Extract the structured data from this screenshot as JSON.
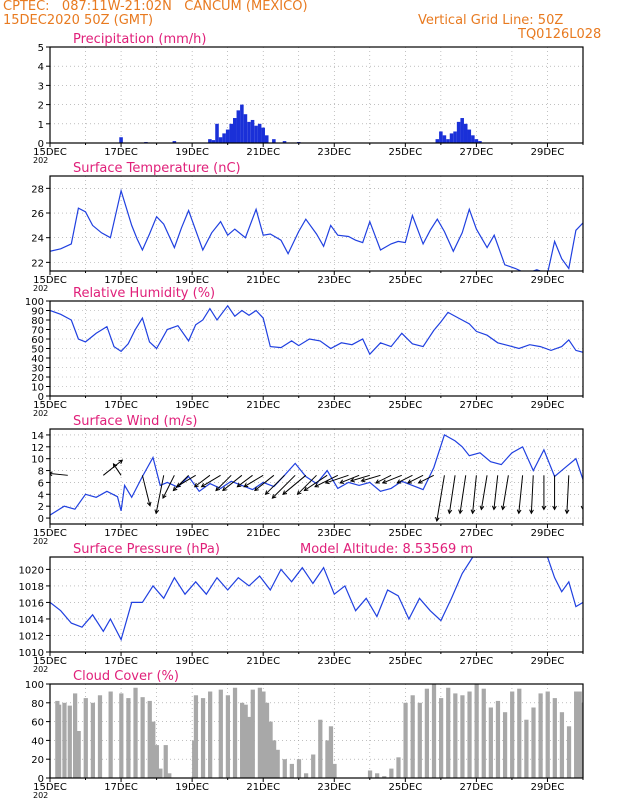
{
  "header": {
    "line1_left": "CPTEC:   087:11W-21:02N   CANCUM (MEXICO)",
    "line2_left": "15DEC2020 50Z (GMT)",
    "line1_right": "Vertical Grid Line: 50Z",
    "line2_right": "TQ0126L028"
  },
  "colors": {
    "header": "#e87a20",
    "title": "#e0207a",
    "line": "#2040e0",
    "bar": "#1a30d8",
    "cloud": "#a8a8a8"
  },
  "x_ticks": [
    "15DEC",
    "17DEC",
    "19DEC",
    "21DEC",
    "23DEC",
    "25DEC",
    "27DEC",
    "29DEC"
  ],
  "x_tick_suffix": "202",
  "chart_data": [
    {
      "id": "precip",
      "type": "bar",
      "title": "Precipitation  (mm/h)",
      "ylim": [
        0,
        5
      ],
      "yticks": [
        0,
        1,
        2,
        3,
        4,
        5
      ],
      "x": [
        2.0,
        2.7,
        3.5,
        4.5,
        4.6,
        4.7,
        4.8,
        4.9,
        5.0,
        5.1,
        5.2,
        5.3,
        5.4,
        5.5,
        5.6,
        5.7,
        5.8,
        5.9,
        6.0,
        6.1,
        6.3,
        6.6,
        7.0,
        10.9,
        11.0,
        11.1,
        11.2,
        11.3,
        11.4,
        11.5,
        11.6,
        11.7,
        11.8,
        11.9,
        12.0,
        12.1
      ],
      "values": [
        0.3,
        0.05,
        0.1,
        0.2,
        0.15,
        1.0,
        0.3,
        0.5,
        0.7,
        1.0,
        1.3,
        1.7,
        2.0,
        1.5,
        1.1,
        1.2,
        0.9,
        1.0,
        0.8,
        0.4,
        0.2,
        0.1,
        0.05,
        0.2,
        0.6,
        0.4,
        0.2,
        0.5,
        0.6,
        1.1,
        1.3,
        1.0,
        0.7,
        0.4,
        0.2,
        0.1
      ]
    },
    {
      "id": "temp",
      "type": "line",
      "title": "Surface Temperature  (nC)",
      "ylim": [
        21.3,
        29
      ],
      "yticks": [
        22,
        24,
        26,
        28
      ],
      "x": [
        0,
        0.3,
        0.6,
        0.8,
        1.0,
        1.2,
        1.45,
        1.7,
        2.0,
        2.3,
        2.45,
        2.6,
        2.8,
        3.0,
        3.2,
        3.5,
        3.7,
        3.9,
        4.1,
        4.3,
        4.55,
        4.8,
        5.0,
        5.2,
        5.5,
        5.8,
        6.0,
        6.2,
        6.5,
        6.7,
        7.0,
        7.2,
        7.5,
        7.7,
        7.9,
        8.1,
        8.4,
        8.6,
        8.8,
        9.0,
        9.3,
        9.6,
        9.8,
        10.0,
        10.2,
        10.5,
        10.7,
        10.9,
        11.1,
        11.35,
        11.6,
        11.8,
        12.0,
        12.3,
        12.5,
        12.8,
        13.1,
        13.4,
        13.7,
        14.0,
        14.2,
        14.4,
        14.6,
        14.8,
        15.0
      ],
      "values": [
        22.9,
        23.1,
        23.5,
        26.4,
        26.1,
        25.0,
        24.4,
        24.0,
        27.8,
        25.0,
        23.9,
        23.0,
        24.3,
        25.7,
        25.1,
        23.2,
        24.8,
        26.2,
        24.6,
        23.0,
        24.4,
        25.3,
        24.2,
        24.7,
        24.0,
        26.3,
        24.2,
        24.3,
        23.8,
        22.7,
        24.5,
        25.5,
        24.3,
        23.3,
        25.0,
        24.2,
        24.1,
        23.8,
        23.6,
        25.3,
        23.0,
        23.5,
        23.7,
        23.6,
        25.8,
        23.5,
        24.6,
        25.5,
        24.5,
        22.9,
        24.4,
        26.3,
        24.7,
        23.2,
        24.2,
        21.8,
        21.5,
        21.1,
        21.4,
        21.1,
        23.7,
        22.3,
        21.5,
        24.6,
        25.2
      ]
    },
    {
      "id": "rh",
      "type": "line",
      "title": "Relative Humidity  (%)",
      "ylim": [
        0,
        100
      ],
      "yticks": [
        0,
        10,
        20,
        30,
        40,
        50,
        60,
        70,
        80,
        90,
        100
      ],
      "x": [
        0,
        0.3,
        0.6,
        0.8,
        1.0,
        1.3,
        1.6,
        1.8,
        2.0,
        2.2,
        2.4,
        2.6,
        2.8,
        3.0,
        3.3,
        3.6,
        3.9,
        4.1,
        4.3,
        4.5,
        4.7,
        5.0,
        5.2,
        5.4,
        5.6,
        5.8,
        6.0,
        6.2,
        6.5,
        6.8,
        7.0,
        7.3,
        7.6,
        7.9,
        8.2,
        8.5,
        8.8,
        9.0,
        9.3,
        9.6,
        9.9,
        10.2,
        10.5,
        10.8,
        11.0,
        11.2,
        11.5,
        11.8,
        12.0,
        12.3,
        12.6,
        12.9,
        13.2,
        13.5,
        13.8,
        14.1,
        14.4,
        14.6,
        14.8,
        15.0
      ],
      "values": [
        90,
        86,
        80,
        60,
        57,
        66,
        73,
        52,
        47,
        55,
        70,
        82,
        57,
        50,
        70,
        74,
        58,
        75,
        80,
        92,
        80,
        95,
        84,
        90,
        85,
        90,
        82,
        52,
        51,
        58,
        53,
        60,
        58,
        50,
        56,
        54,
        60,
        44,
        56,
        52,
        66,
        55,
        52,
        69,
        78,
        88,
        82,
        76,
        68,
        64,
        56,
        53,
        50,
        54,
        52,
        48,
        52,
        59,
        48,
        46
      ]
    },
    {
      "id": "wind",
      "type": "line",
      "title": "Surface Wind  (m/s)",
      "ylim": [
        -1,
        15
      ],
      "yticks": [
        0,
        2,
        4,
        6,
        8,
        10,
        12,
        14
      ],
      "x": [
        0,
        0.4,
        0.7,
        1.0,
        1.3,
        1.6,
        1.9,
        2.0,
        2.1,
        2.3,
        2.6,
        2.9,
        3.1,
        3.3,
        3.6,
        3.9,
        4.2,
        4.5,
        4.8,
        5.1,
        5.4,
        5.7,
        6.0,
        6.3,
        6.6,
        6.9,
        7.2,
        7.5,
        7.8,
        8.1,
        8.4,
        8.7,
        9.0,
        9.3,
        9.6,
        9.9,
        10.2,
        10.5,
        10.8,
        11.1,
        11.4,
        11.6,
        11.8,
        12.1,
        12.4,
        12.7,
        13.0,
        13.3,
        13.6,
        13.9,
        14.2,
        14.5,
        14.8,
        15.0
      ],
      "values": [
        0.5,
        2.0,
        1.5,
        4.0,
        3.5,
        4.5,
        3.6,
        1.2,
        5.5,
        3.5,
        7.0,
        10.2,
        5.5,
        6.0,
        5.2,
        7.0,
        4.5,
        5.8,
        5.0,
        6.2,
        5.5,
        4.8,
        6.0,
        5.3,
        7.2,
        9.2,
        7.0,
        5.8,
        8.0,
        5.0,
        6.0,
        5.5,
        6.0,
        4.5,
        5.0,
        6.2,
        5.5,
        4.8,
        8.5,
        14.0,
        13.0,
        12.0,
        10.5,
        11.0,
        9.5,
        9.0,
        11.0,
        12.0,
        8.0,
        11.5,
        7.0,
        8.5,
        10.0,
        6.5
      ],
      "barbs_x": [
        0.5,
        1.5,
        2.0,
        2.6,
        3.2,
        3.5,
        3.9,
        4.1,
        4.5,
        4.8,
        5.1,
        5.4,
        5.7,
        6.0,
        6.3,
        6.6,
        6.9,
        7.2,
        7.5,
        7.8,
        8.1,
        8.4,
        8.7,
        9.0,
        9.3,
        9.6,
        9.9,
        10.2,
        10.5,
        10.8,
        11.1,
        11.4,
        11.7,
        12.0,
        12.3,
        12.6,
        12.9,
        13.3,
        13.6,
        13.9,
        14.2,
        14.6,
        15.0
      ],
      "barbs_u": [
        -0.5,
        0.5,
        -0.2,
        0.2,
        -0.2,
        -0.3,
        -0.4,
        -0.5,
        -0.4,
        -0.5,
        -0.4,
        -0.5,
        -0.4,
        -0.5,
        -0.5,
        -0.5,
        -0.6,
        -0.6,
        -0.5,
        -0.6,
        -0.6,
        -0.6,
        -0.5,
        -0.5,
        -0.5,
        -0.4,
        -0.5,
        -0.4,
        -0.4,
        -0.4,
        -0.2,
        -0.15,
        -0.15,
        -0.1,
        -0.15,
        -0.1,
        -0.15,
        -0.1,
        -0.05,
        0,
        0,
        -0.05,
        0
      ],
      "barbs_v": [
        0.05,
        0.4,
        0.3,
        -0.8,
        -1.0,
        -0.6,
        -0.4,
        -0.3,
        -0.3,
        -0.3,
        -0.4,
        -0.4,
        -0.3,
        -0.3,
        -0.4,
        -0.5,
        -0.6,
        -0.5,
        -0.5,
        -0.4,
        -0.3,
        -0.2,
        -0.2,
        -0.15,
        -0.15,
        -0.2,
        -0.2,
        -0.2,
        -0.2,
        -0.2,
        -1.2,
        -1.0,
        -1.0,
        -1.0,
        -0.9,
        -0.9,
        -0.9,
        -1.0,
        -1.0,
        -0.9,
        -0.9,
        -1.0,
        -0.9
      ]
    },
    {
      "id": "pres",
      "type": "line",
      "title": "Surface Pressure  (hPa)",
      "annotation": "Model Altitude: 8.53569  m",
      "ylim": [
        1010,
        1021.5
      ],
      "yticks": [
        1010,
        1012,
        1014,
        1016,
        1018,
        1020
      ],
      "x": [
        0,
        0.3,
        0.6,
        0.9,
        1.2,
        1.5,
        1.7,
        2.0,
        2.3,
        2.6,
        2.9,
        3.2,
        3.5,
        3.8,
        4.1,
        4.4,
        4.7,
        5.0,
        5.3,
        5.6,
        5.9,
        6.2,
        6.5,
        6.8,
        7.1,
        7.4,
        7.7,
        8.0,
        8.3,
        8.6,
        8.9,
        9.2,
        9.5,
        9.8,
        10.1,
        10.4,
        10.7,
        11.0,
        11.3,
        11.6,
        11.9,
        12.1,
        14.0,
        14.2,
        14.4,
        14.6,
        14.8,
        15.0
      ],
      "values": [
        1016,
        1015,
        1013.5,
        1013,
        1014.5,
        1012.5,
        1014,
        1011.5,
        1016,
        1016,
        1018,
        1016.5,
        1019,
        1017,
        1018.5,
        1017,
        1019,
        1017.5,
        1019,
        1018,
        1019.2,
        1017.5,
        1020,
        1018.5,
        1020.2,
        1018.3,
        1020.2,
        1017,
        1018,
        1015,
        1016.5,
        1014.3,
        1017.5,
        1016.8,
        1014,
        1016.5,
        1015,
        1013.8,
        1016.5,
        1019.5,
        1021.5,
        1021.5,
        1021.5,
        1019,
        1017.3,
        1018.5,
        1015.5,
        1016
      ]
    },
    {
      "id": "cloud",
      "type": "area",
      "title": "Cloud Cover  (%)",
      "ylim": [
        0,
        100
      ],
      "yticks": [
        0,
        20,
        40,
        60,
        80,
        100
      ],
      "x": [
        0.1,
        0.2,
        0.25,
        0.4,
        0.55,
        0.7,
        0.8,
        1.0,
        1.2,
        1.4,
        1.7,
        2.0,
        2.2,
        2.4,
        2.6,
        2.8,
        2.9,
        3.0,
        3.1,
        3.25,
        3.35,
        3.5,
        3.8,
        4.0,
        4.05,
        4.1,
        4.3,
        4.5,
        4.8,
        5.0,
        5.2,
        5.4,
        5.5,
        5.6,
        5.7,
        5.9,
        6.0,
        6.1,
        6.2,
        6.3,
        6.4,
        6.6,
        6.8,
        7.0,
        7.2,
        7.4,
        7.6,
        7.8,
        7.9,
        8.0,
        8.3,
        8.6,
        8.8,
        9.0,
        9.2,
        9.4,
        9.6,
        9.8,
        10.0,
        10.2,
        10.4,
        10.6,
        10.8,
        11.0,
        11.2,
        11.4,
        11.6,
        11.8,
        12.0,
        12.2,
        12.4,
        12.6,
        12.8,
        13.0,
        13.2,
        13.4,
        13.6,
        13.8,
        14.0,
        14.2,
        14.4,
        14.6,
        14.8,
        14.9,
        15.0
      ],
      "values": [
        0,
        82,
        78,
        80,
        77,
        90,
        50,
        85,
        80,
        88,
        92,
        90,
        85,
        96,
        86,
        82,
        60,
        35,
        10,
        35,
        5,
        0,
        0,
        0,
        40,
        88,
        85,
        92,
        94,
        88,
        96,
        80,
        78,
        65,
        94,
        96,
        92,
        80,
        60,
        40,
        30,
        20,
        15,
        20,
        5,
        25,
        62,
        40,
        55,
        15,
        0,
        0,
        0,
        8,
        5,
        2,
        10,
        22,
        80,
        88,
        80,
        95,
        100,
        85,
        96,
        90,
        88,
        92,
        100,
        95,
        75,
        82,
        70,
        92,
        95,
        62,
        75,
        90,
        92,
        85,
        70,
        55,
        92,
        92,
        80
      ]
    }
  ]
}
